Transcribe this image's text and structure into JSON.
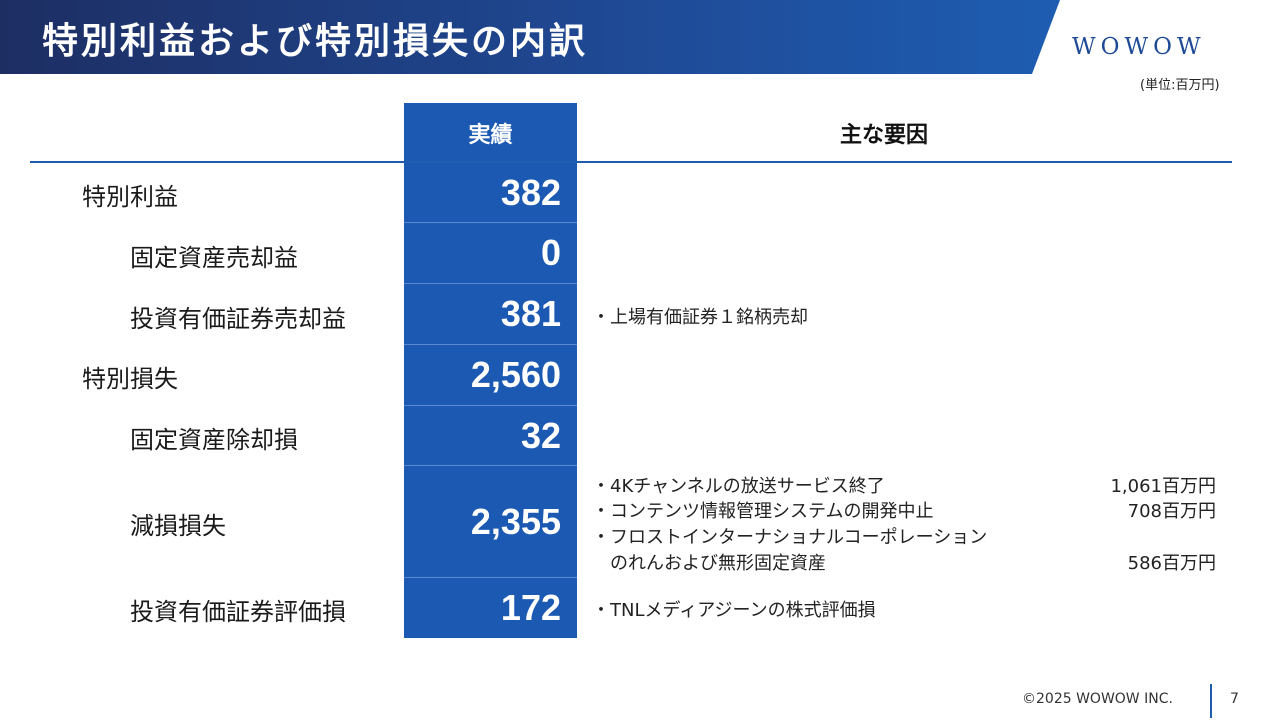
{
  "header": {
    "title": "特別利益および特別損失の内訳",
    "logo": "WOWOW",
    "unit": "(単位:百万円)"
  },
  "table": {
    "col_actual": "実績",
    "col_factor": "主な要因",
    "rows": [
      {
        "label": "特別利益",
        "value": "382"
      },
      {
        "label": "固定資産売却益",
        "value": "0"
      },
      {
        "label": "投資有価証券売却益",
        "value": "381"
      },
      {
        "label": "特別損失",
        "value": "2,560"
      },
      {
        "label": "固定資産除却損",
        "value": "32"
      },
      {
        "label": "減損損失",
        "value": "2,355"
      },
      {
        "label": "投資有価証券評価損",
        "value": "172"
      }
    ],
    "notes": {
      "sale": "・上場有価証券１銘柄売却",
      "impairment_1": "・4Kチャンネルの放送サービス終了",
      "impairment_1_amount": "1,061百万円",
      "impairment_2": "・コンテンツ情報管理システムの開発中止",
      "impairment_2_amount": "708百万円",
      "impairment_3a": "・フロストインターナショナルコーポレーション",
      "impairment_3b": "のれんおよび無形固定資産",
      "impairment_3_amount": "586百万円",
      "valuation": "・TNLメディアジーンの株式評価損"
    }
  },
  "footer": {
    "copyright": "©2025 WOWOW INC.",
    "page": "7"
  }
}
